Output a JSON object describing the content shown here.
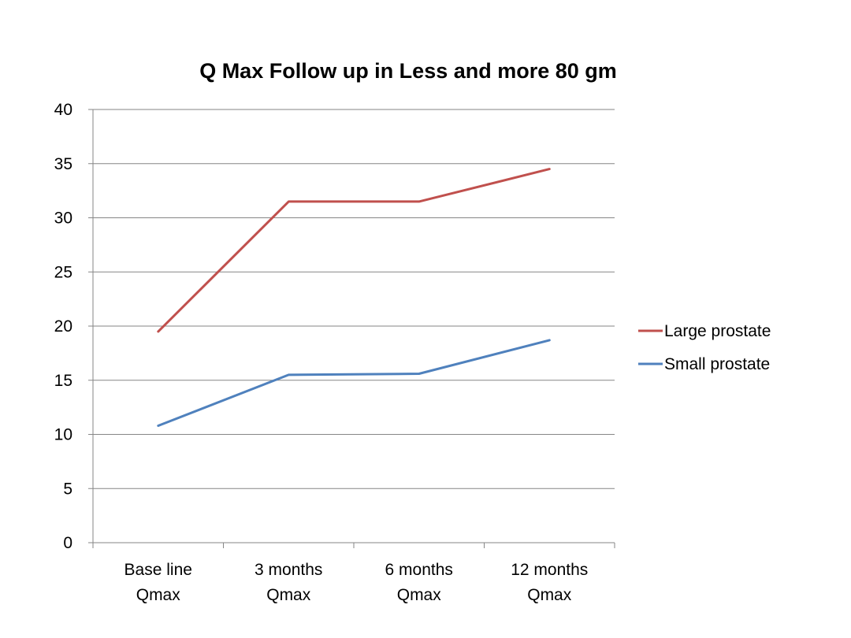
{
  "chart_data": {
    "type": "line",
    "title": "Q Max Follow up in Less and more 80 gm",
    "xlabel": "",
    "ylabel": "",
    "categories": [
      [
        "Base line",
        "Qmax"
      ],
      [
        "3 months",
        "Qmax"
      ],
      [
        "6 months",
        "Qmax"
      ],
      [
        "12 months",
        "Qmax"
      ]
    ],
    "ylim": [
      0,
      40
    ],
    "yticks": [
      0,
      5,
      10,
      15,
      20,
      25,
      30,
      35,
      40
    ],
    "grid": true,
    "legend_position": "right",
    "series": [
      {
        "name": "Large prostate",
        "color": "#c0504d",
        "values": [
          19.5,
          31.5,
          31.5,
          34.5
        ]
      },
      {
        "name": "Small prostate",
        "color": "#4f81bd",
        "values": [
          10.8,
          15.5,
          15.6,
          18.7
        ]
      }
    ]
  }
}
